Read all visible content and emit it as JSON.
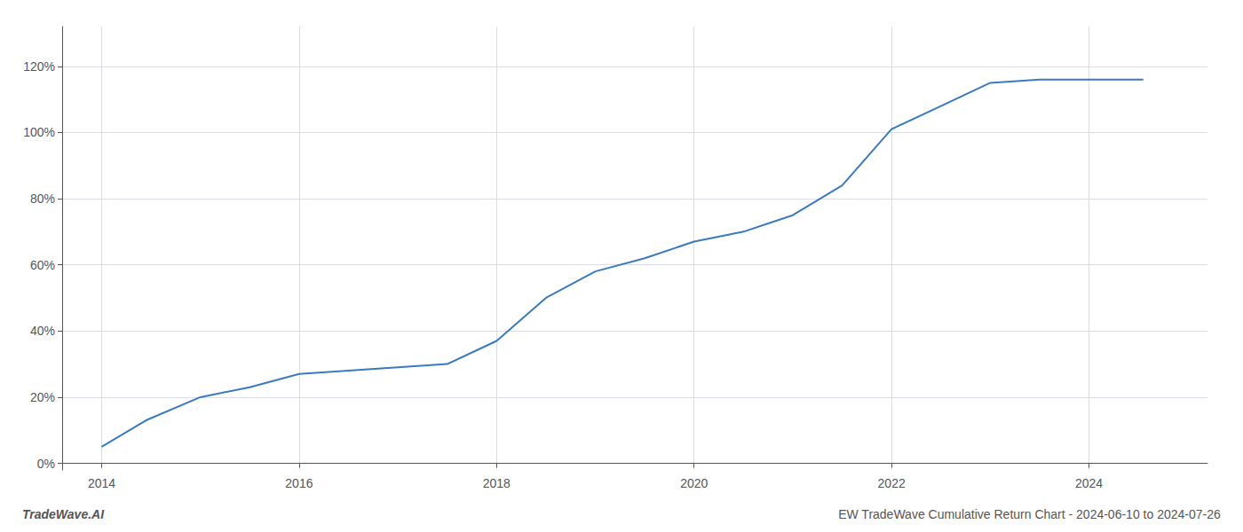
{
  "chart_data": {
    "type": "line",
    "title": "EW TradeWave Cumulative Return Chart - 2024-06-10 to 2024-07-26",
    "annotations": [
      {
        "text": "TradeWave.AI"
      }
    ],
    "x": [
      2014.0,
      2014.45,
      2015.0,
      2015.5,
      2016.0,
      2016.5,
      2017.0,
      2017.5,
      2018.0,
      2018.5,
      2019.0,
      2019.5,
      2020.0,
      2020.5,
      2021.0,
      2021.5,
      2022.0,
      2022.5,
      2023.0,
      2023.5,
      2024.0,
      2024.55
    ],
    "values": [
      0.05,
      0.13,
      0.2,
      0.23,
      0.27,
      0.28,
      0.29,
      0.3,
      0.37,
      0.5,
      0.58,
      0.62,
      0.67,
      0.7,
      0.75,
      0.84,
      1.01,
      1.08,
      1.15,
      1.16,
      1.16,
      1.16
    ],
    "color": "#3a7abf",
    "xlim": [
      2013.6,
      2025.2
    ],
    "ylim": [
      -0.02,
      1.32
    ],
    "xticks": [
      2014,
      2016,
      2018,
      2020,
      2022,
      2024
    ],
    "yticks": [
      {
        "value": 0.0,
        "label": "0%"
      },
      {
        "value": 0.2,
        "label": "20%"
      },
      {
        "value": 0.4,
        "label": "40%"
      },
      {
        "value": 0.6,
        "label": "60%"
      },
      {
        "value": 0.8,
        "label": "80%"
      },
      {
        "value": 1.0,
        "label": "100%"
      },
      {
        "value": 1.2,
        "label": "120%"
      }
    ],
    "grid": true
  }
}
